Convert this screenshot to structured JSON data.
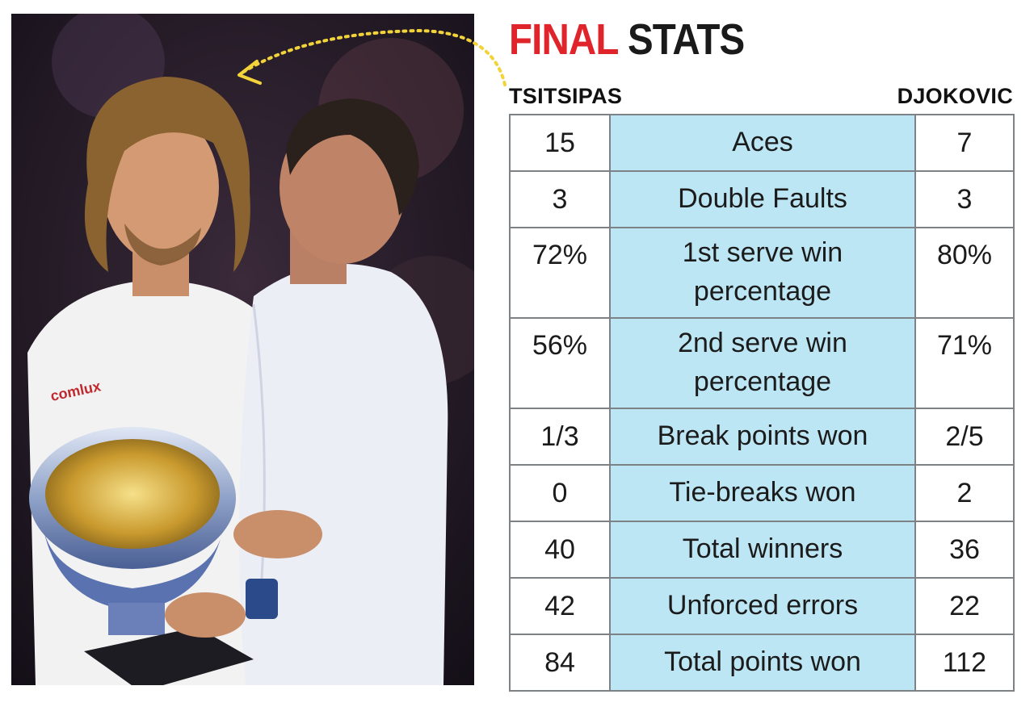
{
  "title": {
    "word1": "FINAL",
    "word2": "STATS"
  },
  "colors": {
    "accent": "#e0242c",
    "label_bg": "#bde6f4",
    "border": "#7d8287",
    "arrow": "#f2d33a"
  },
  "chart_data": {
    "type": "table",
    "title": "FINAL STATS",
    "columns": [
      "TSITSIPAS",
      "",
      "DJOKOVIC"
    ],
    "rows": [
      {
        "left": "15",
        "label": "Aces",
        "right": "7"
      },
      {
        "left": "3",
        "label": "Double Faults",
        "right": "3"
      },
      {
        "left": "72%",
        "label": "1st serve win percentage",
        "right": "80%"
      },
      {
        "left": "56%",
        "label": "2nd serve win percentage",
        "right": "71%"
      },
      {
        "left": "1/3",
        "label": "Break points won",
        "right": "2/5"
      },
      {
        "left": "0",
        "label": "Tie-breaks won",
        "right": "2"
      },
      {
        "left": "40",
        "label": "Total winners",
        "right": "36"
      },
      {
        "left": "42",
        "label": "Unforced errors",
        "right": "22"
      },
      {
        "left": "84",
        "label": "Total points won",
        "right": "112"
      }
    ]
  },
  "photo": {
    "shirt_text": "comlux"
  }
}
